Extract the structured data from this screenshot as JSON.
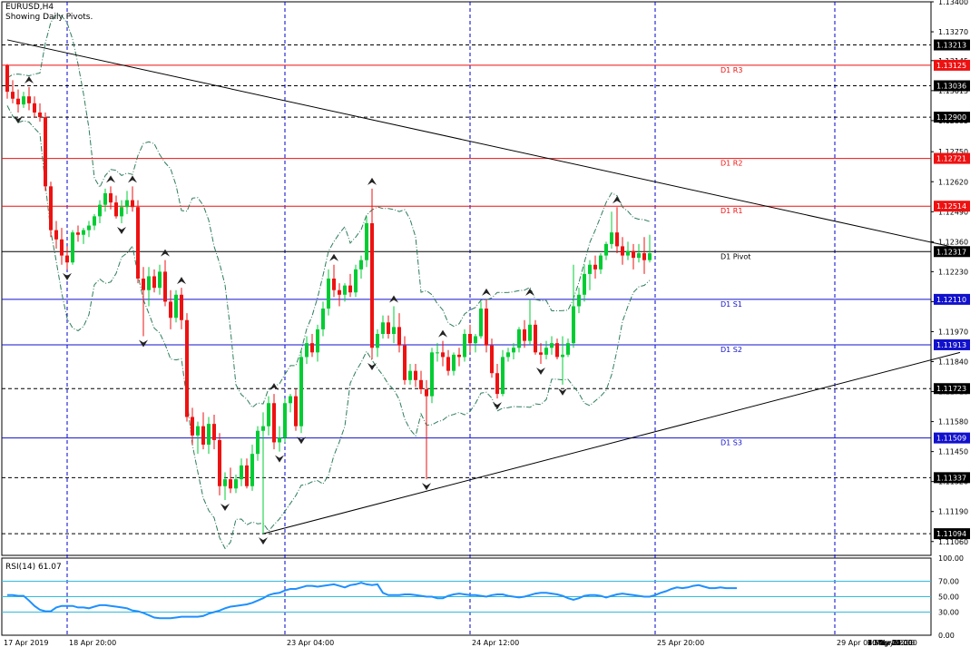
{
  "header": {
    "symbol": "EURUSD,H4",
    "subtitle": "Showing Daily Pivots."
  },
  "rsi": {
    "label": "RSI(14) 61.07",
    "levels": [
      70,
      50,
      30
    ],
    "axis_ticks": [
      "100.00",
      "70.00",
      "50.00",
      "30.00",
      "0.00"
    ],
    "values": [
      52,
      52,
      51,
      51,
      45,
      38,
      33,
      31,
      31,
      36,
      38,
      38,
      38,
      36,
      36,
      35,
      37,
      39,
      39,
      38,
      37,
      36,
      35,
      32,
      31,
      29,
      26,
      23,
      22,
      22,
      22,
      23,
      24,
      24,
      24,
      24,
      25,
      28,
      30,
      32,
      35,
      37,
      38,
      39,
      40,
      42,
      45,
      48,
      52,
      54,
      55,
      58,
      60,
      60,
      62,
      64,
      64,
      63,
      64,
      65,
      66,
      64,
      62,
      65,
      66,
      68,
      66,
      65,
      66,
      55,
      52,
      52,
      52,
      53,
      53,
      52,
      51,
      50,
      50,
      48,
      48,
      51,
      53,
      54,
      53,
      52,
      52,
      51,
      50,
      52,
      53,
      53,
      51,
      50,
      49,
      50,
      52,
      54,
      55,
      55,
      54,
      53,
      51,
      48,
      46,
      48,
      51,
      52,
      52,
      51,
      49,
      51,
      53,
      54,
      53,
      52,
      51,
      50,
      50,
      52,
      55,
      57,
      60,
      62,
      61,
      62,
      64,
      65,
      63,
      61,
      61,
      62,
      61,
      61,
      61
    ]
  },
  "colors": {
    "bull": "#00cc33",
    "bear": "#ee1111",
    "resistance": "#ee1111",
    "support": "#1111cc",
    "pivot": "#000000",
    "envelope": "#2e7d5b",
    "rsi_line": "#1e90ff",
    "rsi_levels": "#33bbdd",
    "grid_dash": "#0000cc"
  },
  "chart_data": {
    "type": "candlestick",
    "symbol": "EURUSD",
    "timeframe": "H4",
    "ylim": [
      1.11,
      1.134
    ],
    "price_ticks": [
      "1.13400",
      "1.13270",
      "1.13145",
      "1.13015",
      "1.12885",
      "1.12750",
      "1.12620",
      "1.12490",
      "1.12360",
      "1.12230",
      "1.12100",
      "1.11970",
      "1.11840",
      "1.11710",
      "1.11580",
      "1.11450",
      "1.11320",
      "1.11190",
      "1.11060"
    ],
    "x_labels": [
      "17 Apr 2019",
      "18 Apr 20:00",
      "23 Apr 04:00",
      "24 Apr 12:00",
      "25 Apr 20:00",
      "29 Apr 04:00",
      "30 Apr 12:00",
      "1 May 20:00",
      "3 May 04:00",
      "6 May 12:00",
      "7 May 20:00",
      "9 May 04:00",
      "10 May 12:00"
    ],
    "pivots": [
      {
        "label": "D1 R3",
        "price": 1.13125,
        "kind": "resistance"
      },
      {
        "label": "D1 R2",
        "price": 1.12721,
        "kind": "resistance"
      },
      {
        "label": "D1 R1",
        "price": 1.12514,
        "kind": "resistance"
      },
      {
        "label": "D1 Pivot",
        "price": 1.12317,
        "kind": "pivot"
      },
      {
        "label": "D1 S1",
        "price": 1.1211,
        "kind": "support"
      },
      {
        "label": "D1 S2",
        "price": 1.11913,
        "kind": "support"
      },
      {
        "label": "D1 S3",
        "price": 1.11509,
        "kind": "support"
      }
    ],
    "levels": [
      {
        "price": 1.13213,
        "tag": "1.13213"
      },
      {
        "price": 1.13036,
        "tag": "1.13036"
      },
      {
        "price": 1.129,
        "tag": "1.12900"
      },
      {
        "price": 1.11723,
        "tag": "1.11723"
      },
      {
        "price": 1.11337,
        "tag": "1.11337"
      },
      {
        "price": 1.11094,
        "tag": "1.11094"
      }
    ],
    "price_tags": [
      "1.13213",
      "1.13125",
      "1.13036",
      "1.12900",
      "1.12721",
      "1.12514",
      "1.12317",
      "1.12110",
      "1.11913",
      "1.11723",
      "1.11509",
      "1.11337",
      "1.11094"
    ],
    "trendlines": [
      {
        "name": "resistance",
        "from": [
          0,
          1.13235
        ],
        "to": [
          175,
          1.1233
        ]
      },
      {
        "name": "support",
        "from": [
          47,
          1.11094
        ],
        "to": [
          175,
          1.1188
        ]
      }
    ],
    "vertical_separator_bars": [
      11,
      51,
      85,
      119,
      152,
      186,
      221
    ],
    "candles": [
      [
        1.13125,
        1.1313,
        1.1298,
        1.1301
      ],
      [
        1.1301,
        1.1306,
        1.1296,
        1.1298
      ],
      [
        1.1298,
        1.1302,
        1.1292,
        1.12955
      ],
      [
        1.12955,
        1.1301,
        1.1294,
        1.1299
      ],
      [
        1.1299,
        1.1303,
        1.1293,
        1.1296
      ],
      [
        1.1296,
        1.1299,
        1.129,
        1.1292
      ],
      [
        1.1292,
        1.1296,
        1.1288,
        1.129
      ],
      [
        1.129,
        1.1292,
        1.1258,
        1.126
      ],
      [
        1.126,
        1.1262,
        1.1238,
        1.1241
      ],
      [
        1.1241,
        1.1245,
        1.1233,
        1.1237
      ],
      [
        1.1237,
        1.1242,
        1.1226,
        1.123
      ],
      [
        1.123,
        1.1234,
        1.1224,
        1.1227
      ],
      [
        1.1227,
        1.1241,
        1.1226,
        1.124
      ],
      [
        1.124,
        1.1243,
        1.1236,
        1.1239
      ],
      [
        1.1239,
        1.1242,
        1.1235,
        1.1241
      ],
      [
        1.1241,
        1.1245,
        1.1238,
        1.1243
      ],
      [
        1.1243,
        1.1248,
        1.1241,
        1.1247
      ],
      [
        1.1247,
        1.1254,
        1.1244,
        1.1252
      ],
      [
        1.1252,
        1.1259,
        1.1249,
        1.1257
      ],
      [
        1.1257,
        1.126,
        1.125,
        1.1253
      ],
      [
        1.1253,
        1.1256,
        1.1246,
        1.1247
      ],
      [
        1.1247,
        1.1254,
        1.1244,
        1.1251
      ],
      [
        1.1251,
        1.1258,
        1.1248,
        1.1254
      ],
      [
        1.1254,
        1.126,
        1.1249,
        1.1251
      ],
      [
        1.1251,
        1.1254,
        1.1218,
        1.122
      ],
      [
        1.122,
        1.1225,
        1.1195,
        1.1215
      ],
      [
        1.1215,
        1.1225,
        1.1208,
        1.1221
      ],
      [
        1.1221,
        1.1224,
        1.1214,
        1.1216
      ],
      [
        1.1216,
        1.1226,
        1.1213,
        1.1223
      ],
      [
        1.1223,
        1.1228,
        1.1208,
        1.121
      ],
      [
        1.121,
        1.1215,
        1.1198,
        1.1203
      ],
      [
        1.1203,
        1.1215,
        1.1201,
        1.1213
      ],
      [
        1.1213,
        1.1216,
        1.1198,
        1.1202
      ],
      [
        1.1202,
        1.1205,
        1.1158,
        1.116
      ],
      [
        1.116,
        1.1164,
        1.1148,
        1.1152
      ],
      [
        1.1152,
        1.1158,
        1.1144,
        1.1156
      ],
      [
        1.1156,
        1.1162,
        1.1146,
        1.1148
      ],
      [
        1.1148,
        1.116,
        1.1144,
        1.1157
      ],
      [
        1.1157,
        1.1161,
        1.1146,
        1.115
      ],
      [
        1.115,
        1.1153,
        1.1126,
        1.113
      ],
      [
        1.113,
        1.1136,
        1.1124,
        1.1133
      ],
      [
        1.1133,
        1.1138,
        1.1127,
        1.1129
      ],
      [
        1.1129,
        1.1135,
        1.1127,
        1.1133
      ],
      [
        1.1133,
        1.1142,
        1.113,
        1.1139
      ],
      [
        1.1139,
        1.1142,
        1.1129,
        1.113
      ],
      [
        1.113,
        1.1148,
        1.1128,
        1.1144
      ],
      [
        1.1144,
        1.1156,
        1.1141,
        1.1154
      ],
      [
        1.1154,
        1.1162,
        1.11094,
        1.1156
      ],
      [
        1.1156,
        1.1169,
        1.1152,
        1.1166
      ],
      [
        1.1166,
        1.117,
        1.1146,
        1.1149
      ],
      [
        1.1149,
        1.1156,
        1.1145,
        1.1151
      ],
      [
        1.1151,
        1.1168,
        1.1149,
        1.1166
      ],
      [
        1.1166,
        1.117,
        1.1162,
        1.1169
      ],
      [
        1.1169,
        1.1172,
        1.1154,
        1.1156
      ],
      [
        1.1156,
        1.1189,
        1.1153,
        1.1186
      ],
      [
        1.1186,
        1.1195,
        1.1183,
        1.1192
      ],
      [
        1.1192,
        1.1196,
        1.1186,
        1.1188
      ],
      [
        1.1188,
        1.12,
        1.1184,
        1.1198
      ],
      [
        1.1198,
        1.121,
        1.1195,
        1.1207
      ],
      [
        1.1207,
        1.1224,
        1.1204,
        1.122
      ],
      [
        1.122,
        1.1226,
        1.1212,
        1.1215
      ],
      [
        1.1215,
        1.1218,
        1.1208,
        1.1213
      ],
      [
        1.1213,
        1.1218,
        1.121,
        1.1217
      ],
      [
        1.1217,
        1.1222,
        1.1212,
        1.1214
      ],
      [
        1.1214,
        1.1226,
        1.1212,
        1.1224
      ],
      [
        1.1224,
        1.123,
        1.122,
        1.1228
      ],
      [
        1.1228,
        1.1247,
        1.1225,
        1.1244
      ],
      [
        1.1244,
        1.1259,
        1.1185,
        1.119
      ],
      [
        1.119,
        1.1198,
        1.1186,
        1.1196
      ],
      [
        1.1196,
        1.1204,
        1.1194,
        1.1201
      ],
      [
        1.1201,
        1.1204,
        1.1194,
        1.1196
      ],
      [
        1.1196,
        1.1208,
        1.1192,
        1.1199
      ],
      [
        1.1199,
        1.1205,
        1.1188,
        1.1191
      ],
      [
        1.1191,
        1.1195,
        1.1174,
        1.1176
      ],
      [
        1.1176,
        1.1183,
        1.1174,
        1.118
      ],
      [
        1.118,
        1.1183,
        1.1173,
        1.1176
      ],
      [
        1.1176,
        1.118,
        1.117,
        1.1172
      ],
      [
        1.1172,
        1.1176,
        1.1133,
        1.1169
      ],
      [
        1.1169,
        1.119,
        1.1166,
        1.1188
      ],
      [
        1.1188,
        1.1192,
        1.1184,
        1.1188
      ],
      [
        1.1188,
        1.1193,
        1.1182,
        1.1186
      ],
      [
        1.1186,
        1.1189,
        1.1178,
        1.118
      ],
      [
        1.118,
        1.1188,
        1.1178,
        1.1187
      ],
      [
        1.1187,
        1.119,
        1.1182,
        1.1186
      ],
      [
        1.1186,
        1.1198,
        1.1184,
        1.1196
      ],
      [
        1.1196,
        1.12,
        1.1188,
        1.1192
      ],
      [
        1.1192,
        1.1196,
        1.1188,
        1.1195
      ],
      [
        1.1195,
        1.121,
        1.1194,
        1.1207
      ],
      [
        1.1207,
        1.1211,
        1.1188,
        1.1191
      ],
      [
        1.1191,
        1.1194,
        1.1177,
        1.1179
      ],
      [
        1.1179,
        1.1183,
        1.1168,
        1.117
      ],
      [
        1.117,
        1.1189,
        1.1169,
        1.1186
      ],
      [
        1.1186,
        1.119,
        1.1184,
        1.1188
      ],
      [
        1.1188,
        1.1192,
        1.1185,
        1.119
      ],
      [
        1.119,
        1.1199,
        1.1188,
        1.1198
      ],
      [
        1.1198,
        1.1202,
        1.119,
        1.1193
      ],
      [
        1.1193,
        1.1211,
        1.1191,
        1.12
      ],
      [
        1.12,
        1.1202,
        1.1187,
        1.1188
      ],
      [
        1.1188,
        1.1192,
        1.1183,
        1.1187
      ],
      [
        1.1187,
        1.1193,
        1.1185,
        1.119
      ],
      [
        1.119,
        1.1195,
        1.1187,
        1.1192
      ],
      [
        1.1192,
        1.1194,
        1.1185,
        1.1186
      ],
      [
        1.1186,
        1.1195,
        1.1174,
        1.1187
      ],
      [
        1.1187,
        1.1194,
        1.1186,
        1.1192
      ],
      [
        1.1192,
        1.1226,
        1.119,
        1.1208
      ],
      [
        1.1208,
        1.1216,
        1.1205,
        1.1213
      ],
      [
        1.1213,
        1.1226,
        1.121,
        1.1222
      ],
      [
        1.1222,
        1.1228,
        1.1215,
        1.1226
      ],
      [
        1.1226,
        1.123,
        1.122,
        1.1224
      ],
      [
        1.1224,
        1.1231,
        1.1222,
        1.123
      ],
      [
        1.123,
        1.1236,
        1.1228,
        1.1235
      ],
      [
        1.1235,
        1.1249,
        1.1233,
        1.124
      ],
      [
        1.124,
        1.1251,
        1.1231,
        1.1234
      ],
      [
        1.1234,
        1.1238,
        1.1226,
        1.123
      ],
      [
        1.123,
        1.1236,
        1.1228,
        1.1232
      ],
      [
        1.1232,
        1.1235,
        1.1224,
        1.1229
      ],
      [
        1.1229,
        1.1235,
        1.1227,
        1.1231
      ],
      [
        1.1231,
        1.1238,
        1.1222,
        1.1228
      ],
      [
        1.1228,
        1.1239,
        1.1227,
        1.1231
      ]
    ]
  }
}
